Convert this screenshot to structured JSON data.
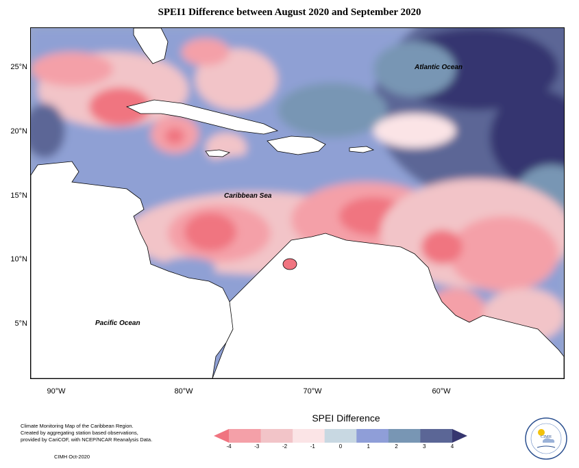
{
  "title": "SPEI1 Difference between August 2020 and September 2020",
  "map": {
    "ocean_labels": {
      "atlantic": "Atlantic Ocean",
      "caribbean": "Caribbean Sea",
      "pacific": "Pacific Ocean"
    },
    "lat_labels": [
      "25°N",
      "20°N",
      "15°N",
      "10°N",
      "5°N"
    ],
    "lon_labels": [
      "90°W",
      "80°W",
      "70°W",
      "60°W"
    ]
  },
  "legend": {
    "title": "SPEI Difference",
    "ticks": [
      "-4",
      "-3",
      "-2",
      "-1",
      "0",
      "1",
      "2",
      "3",
      "4"
    ],
    "colors": [
      "#f07480",
      "#f4a0a8",
      "#f2c4c8",
      "#fbe4e6",
      "#c8d8e2",
      "#8f9ed8",
      "#7896b4",
      "#5b6696",
      "#36366f"
    ]
  },
  "credits": {
    "line1": "Climate Monitoring Map of the Caribbean Region.",
    "line2": "Created by aggregating station based observations,",
    "line3": "provided by CariCOF, with NCEP/NCAR Reanalysis Data.",
    "footer": "CIMH Oct-2020"
  },
  "logo": {
    "text": "CIMH"
  }
}
